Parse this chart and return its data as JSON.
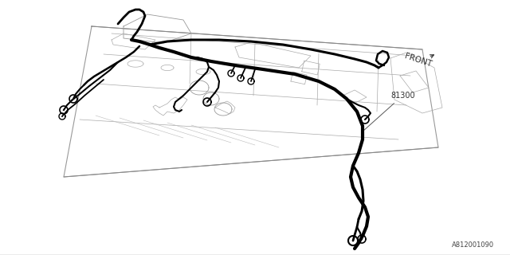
{
  "bg_color": "#ffffff",
  "lc": "#111111",
  "panel_color": "#666666",
  "wire_color": "#000000",
  "part_number": "81300",
  "front_label": "FRONT",
  "diagram_id": "A812001090",
  "fig_w": 6.4,
  "fig_h": 3.2,
  "dpi": 100
}
